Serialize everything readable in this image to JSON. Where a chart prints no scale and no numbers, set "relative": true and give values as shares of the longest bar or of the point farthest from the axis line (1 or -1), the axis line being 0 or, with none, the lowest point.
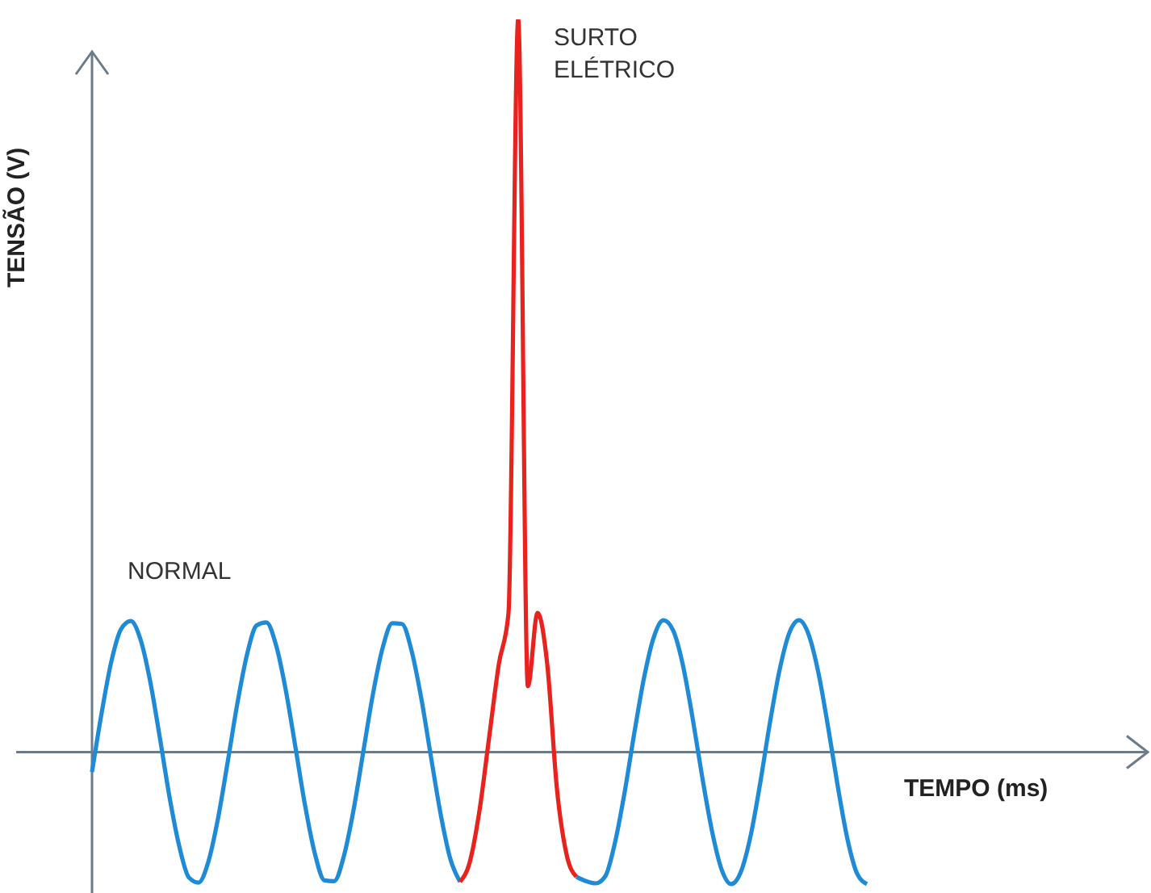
{
  "chart_data": {
    "type": "line",
    "relative": true,
    "xlabel": "TEMPO (ms)",
    "ylabel": "TENSÃO (V)",
    "categories": [
      null,
      null,
      null,
      null,
      null,
      null,
      null,
      null,
      null,
      null,
      null,
      null,
      null,
      null,
      null,
      null,
      null,
      null,
      null,
      null,
      null,
      null,
      null,
      null,
      null,
      null,
      null,
      null,
      null,
      null,
      null,
      null,
      null,
      null,
      null,
      null,
      null,
      null,
      null,
      null,
      null,
      null,
      null,
      null,
      null,
      null,
      null,
      null,
      null,
      null,
      null,
      null,
      null,
      null,
      null,
      null,
      null,
      null,
      null,
      null,
      null,
      null,
      null,
      null,
      null,
      null,
      null,
      null,
      null,
      null,
      null,
      null,
      null,
      null,
      null,
      null,
      null,
      null,
      null,
      null,
      null
    ],
    "series": [
      {
        "name": "NORMAL",
        "color": "#1f8ad6",
        "values": [
          -0.027,
          0.054,
          0.124,
          0.168,
          0.179,
          0.154,
          0.097,
          0.02,
          -0.061,
          -0.128,
          -0.171,
          -0.178,
          -0.15,
          -0.091,
          -0.014,
          0.066,
          0.133,
          0.173,
          0.177,
          0.146,
          0.085,
          0.007,
          -0.073,
          -0.138,
          -0.175,
          -0.176,
          -0.142,
          -0.079,
          0,
          0.079,
          0.142,
          0.176,
          0.175,
          0.138,
          0.073,
          -0.007,
          -0.085,
          -0.146,
          -0.177,
          null,
          null,
          null,
          null,
          null,
          null,
          null,
          null,
          null,
          null,
          null,
          -0.17,
          -0.176,
          -0.179,
          -0.169,
          -0.123,
          -0.054,
          0.027,
          0.102,
          0.157,
          0.18,
          0.166,
          0.119,
          0.047,
          -0.034,
          -0.107,
          -0.16,
          -0.18,
          -0.163,
          -0.114,
          -0.041,
          0.041,
          0.113,
          0.163,
          0.18,
          0.16,
          0.108,
          0.034,
          -0.047,
          -0.119,
          -0.166,
          -0.18
        ]
      },
      {
        "name": "SURTO ELÉTRICO",
        "color": "#e8231e",
        "values": [
          null,
          null,
          null,
          null,
          null,
          null,
          null,
          null,
          null,
          null,
          null,
          null,
          null,
          null,
          null,
          null,
          null,
          null,
          null,
          null,
          null,
          null,
          null,
          null,
          null,
          null,
          null,
          null,
          null,
          null,
          null,
          null,
          null,
          null,
          null,
          null,
          null,
          null,
          -0.177,
          -0.15,
          -0.08,
          0.02,
          0.12,
          0.19,
          1,
          0.09,
          0.19,
          0.12,
          -0.05,
          -0.14,
          -0.17,
          null,
          null,
          null,
          null,
          null,
          null,
          null,
          null,
          null,
          null,
          null,
          null,
          null,
          null,
          null,
          null,
          null,
          null,
          null,
          null,
          null,
          null,
          null,
          null,
          null,
          null,
          null,
          null,
          null,
          null
        ]
      }
    ]
  }
}
